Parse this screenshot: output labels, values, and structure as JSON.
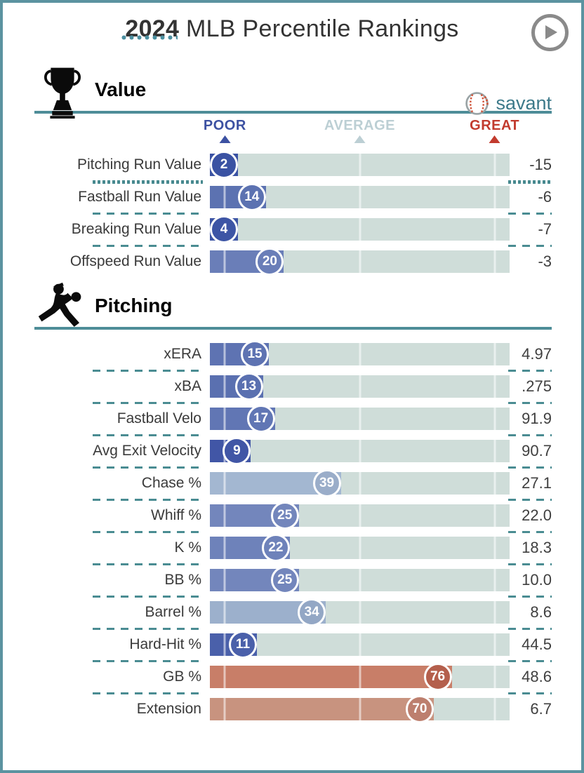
{
  "page": {
    "border_color": "#5b93a0",
    "background": "#ffffff"
  },
  "header": {
    "title_year": "2024",
    "title_rest": " MLB Percentile Rankings",
    "accent_dots_color": "#4b8fa0",
    "play_icon": "play-icon",
    "play_color": "#8a8a8a"
  },
  "brand": {
    "logo_text": "savant",
    "logo_color": "#3d7a8a",
    "baseball_icon": "baseball-icon"
  },
  "scale": {
    "markers": [
      {
        "label": "POOR",
        "color": "#3c51a2",
        "pos": 5
      },
      {
        "label": "AVERAGE",
        "color": "#bccfd4",
        "pos": 50
      },
      {
        "label": "GREAT",
        "color": "#c23b2e",
        "pos": 95
      }
    ]
  },
  "track": {
    "color": "#cfddd9",
    "tick_positions": [
      5,
      50,
      95
    ]
  },
  "sections": [
    {
      "id": "value",
      "title": "Value",
      "icon": "trophy-icon",
      "rows": [
        {
          "label": "Pitching Run Value",
          "pct": 2,
          "value": "-15",
          "bar": "#3a52a3",
          "circle": "#3a52a3",
          "sep": "dotted"
        },
        {
          "label": "Fastball Run Value",
          "pct": 14,
          "value": "-6",
          "bar": "#5c72b1",
          "circle": "#5c72b1",
          "sep": "dashed"
        },
        {
          "label": "Breaking Run Value",
          "pct": 4,
          "value": "-7",
          "bar": "#3d55a5",
          "circle": "#3d55a5",
          "sep": "dashed"
        },
        {
          "label": "Offspeed Run Value",
          "pct": 20,
          "value": "-3",
          "bar": "#6a7eb8",
          "circle": "#6a7eb8",
          "sep": null
        }
      ]
    },
    {
      "id": "pitching",
      "title": "Pitching",
      "icon": "pitcher-icon",
      "rows": [
        {
          "label": "xERA",
          "pct": 15,
          "value": "4.97",
          "bar": "#5e73b2",
          "circle": "#5e73b2",
          "sep": "dashed"
        },
        {
          "label": "xBA",
          "pct": 13,
          "value": ".275",
          "bar": "#5a70b0",
          "circle": "#5a70b0",
          "sep": "dashed"
        },
        {
          "label": "Fastball Velo",
          "pct": 17,
          "value": "91.9",
          "bar": "#6176b4",
          "circle": "#6176b4",
          "sep": "dashed"
        },
        {
          "label": "Avg Exit Velocity",
          "pct": 9,
          "value": "90.7",
          "bar": "#4156a6",
          "circle": "#4156a6",
          "sep": "dashed"
        },
        {
          "label": "Chase %",
          "pct": 39,
          "value": "27.1",
          "bar": "#a3b7d1",
          "circle": "#9aadc9",
          "sep": "dashed"
        },
        {
          "label": "Whiff %",
          "pct": 25,
          "value": "22.0",
          "bar": "#7386bc",
          "circle": "#7386bc",
          "sep": "dashed"
        },
        {
          "label": "K %",
          "pct": 22,
          "value": "18.3",
          "bar": "#6e82ba",
          "circle": "#6e82ba",
          "sep": "dashed"
        },
        {
          "label": "BB %",
          "pct": 25,
          "value": "10.0",
          "bar": "#7386bc",
          "circle": "#7386bc",
          "sep": "dashed"
        },
        {
          "label": "Barrel %",
          "pct": 34,
          "value": "8.6",
          "bar": "#9cb0cc",
          "circle": "#93a7c5",
          "sep": "dashed"
        },
        {
          "label": "Hard-Hit %",
          "pct": 11,
          "value": "44.5",
          "bar": "#4a60aa",
          "circle": "#4a60aa",
          "sep": "dashed"
        },
        {
          "label": "GB %",
          "pct": 76,
          "value": "48.6",
          "bar": "#c87e68",
          "circle": "#b45f4c",
          "sep": "dashed"
        },
        {
          "label": "Extension",
          "pct": 70,
          "value": "6.7",
          "bar": "#c8937f",
          "circle": "#bd7f6e",
          "sep": null
        }
      ]
    }
  ],
  "chart_data": {
    "type": "bar",
    "title": "2024 MLB Percentile Rankings",
    "xlabel": "Percentile",
    "ylim": [
      0,
      100
    ],
    "legend_position": "top",
    "scale_markers": [
      {
        "label": "POOR",
        "percentile": 5
      },
      {
        "label": "AVERAGE",
        "percentile": 50
      },
      {
        "label": "GREAT",
        "percentile": 95
      }
    ],
    "sections": [
      {
        "name": "Value",
        "metrics": [
          {
            "label": "Pitching Run Value",
            "percentile": 2,
            "value": "-15"
          },
          {
            "label": "Fastball Run Value",
            "percentile": 14,
            "value": "-6"
          },
          {
            "label": "Breaking Run Value",
            "percentile": 4,
            "value": "-7"
          },
          {
            "label": "Offspeed Run Value",
            "percentile": 20,
            "value": "-3"
          }
        ]
      },
      {
        "name": "Pitching",
        "metrics": [
          {
            "label": "xERA",
            "percentile": 15,
            "value": "4.97"
          },
          {
            "label": "xBA",
            "percentile": 13,
            "value": ".275"
          },
          {
            "label": "Fastball Velo",
            "percentile": 17,
            "value": "91.9"
          },
          {
            "label": "Avg Exit Velocity",
            "percentile": 9,
            "value": "90.7"
          },
          {
            "label": "Chase %",
            "percentile": 39,
            "value": "27.1"
          },
          {
            "label": "Whiff %",
            "percentile": 25,
            "value": "22.0"
          },
          {
            "label": "K %",
            "percentile": 22,
            "value": "18.3"
          },
          {
            "label": "BB %",
            "percentile": 25,
            "value": "10.0"
          },
          {
            "label": "Barrel %",
            "percentile": 34,
            "value": "8.6"
          },
          {
            "label": "Hard-Hit %",
            "percentile": 11,
            "value": "44.5"
          },
          {
            "label": "GB %",
            "percentile": 76,
            "value": "48.6"
          },
          {
            "label": "Extension",
            "percentile": 70,
            "value": "6.7"
          }
        ]
      }
    ]
  }
}
